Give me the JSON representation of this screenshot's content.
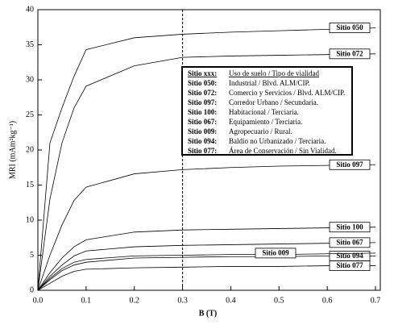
{
  "chart_data": {
    "type": "line",
    "xlabel": "B (T)",
    "ylabel": "MRI (mAm²kg⁻¹)",
    "x": [
      0,
      0.025,
      0.05,
      0.075,
      0.1,
      0.2,
      0.3,
      0.4,
      0.5,
      0.6,
      0.7
    ],
    "series": [
      {
        "name": "Sitio 050",
        "color": "#000000",
        "values": [
          0,
          21,
          26,
          30.5,
          34.3,
          36.0,
          36.5,
          36.8,
          37.0,
          37.2,
          37.4
        ]
      },
      {
        "name": "Sitio 072",
        "color": "#000000",
        "values": [
          0,
          13,
          21,
          26,
          29.1,
          32.0,
          33.2,
          33.4,
          33.5,
          33.6,
          33.7
        ]
      },
      {
        "name": "Sitio 097",
        "color": "#000000",
        "values": [
          0,
          5,
          9.3,
          12.8,
          14.7,
          16.6,
          17.2,
          17.5,
          17.7,
          17.8,
          17.9
        ]
      },
      {
        "name": "Sitio 100",
        "color": "#000000",
        "values": [
          0,
          2.5,
          4.6,
          6.2,
          7.2,
          8.3,
          8.6,
          8.7,
          8.8,
          8.9,
          9.0
        ]
      },
      {
        "name": "Sitio 067",
        "color": "#000000",
        "values": [
          0,
          2,
          3.6,
          4.9,
          5.6,
          6.2,
          6.4,
          6.5,
          6.6,
          6.7,
          6.8
        ]
      },
      {
        "name": "Sitio 094",
        "color": "#000000",
        "values": [
          0,
          1.5,
          2.8,
          3.6,
          4.0,
          4.6,
          4.7,
          4.8,
          4.8,
          4.9,
          4.9
        ]
      },
      {
        "name": "Sitio 077",
        "color": "#000000",
        "values": [
          0,
          1.0,
          2.0,
          2.7,
          3.0,
          3.2,
          3.3,
          3.4,
          3.4,
          3.5,
          3.5
        ]
      },
      {
        "name": "Sitio 009",
        "color": "#000000",
        "values": [
          0,
          1.7,
          3.1,
          4.0,
          4.4,
          4.9,
          5.0,
          5.1,
          5.1,
          5.2,
          5.3
        ]
      }
    ],
    "xlim": [
      0,
      0.71
    ],
    "ylim": [
      0,
      40
    ],
    "xticks": [
      {
        "value": 0,
        "label": "0.0"
      },
      0.1,
      0.2,
      0.3,
      0.4,
      0.5,
      0.6,
      0.7
    ],
    "yticks": [
      0,
      5,
      10,
      15,
      20,
      25,
      30,
      35,
      40
    ],
    "vline": 0.3,
    "legend_box": {
      "header": {
        "key": "Sitio xxx:",
        "desc": "Uso de suelo / Tipo de vialidad"
      },
      "rows": [
        {
          "key": "Sitio 050:",
          "desc": "Industrial / Blvd. ALM/CIP."
        },
        {
          "key": "Sitio 072:",
          "desc": "Comercio y Servicios / Blvd. ALM/CIP."
        },
        {
          "key": "Sitio 097:",
          "desc": "Corredor Urbano / Secundaria."
        },
        {
          "key": "Sitio 100:",
          "desc": "Habitacional / Terciaria."
        },
        {
          "key": "Sitio 067:",
          "desc": "Equipamiento / Terciaria."
        },
        {
          "key": "Sitio 009:",
          "desc": "Agropecuario / Rural."
        },
        {
          "key": "Sitio 094:",
          "desc": "Baldío no Urbanizado / Terciaria."
        },
        {
          "key": "Sitio 077:",
          "desc": "Área de Conservación / Sin Vialidad."
        }
      ]
    }
  }
}
